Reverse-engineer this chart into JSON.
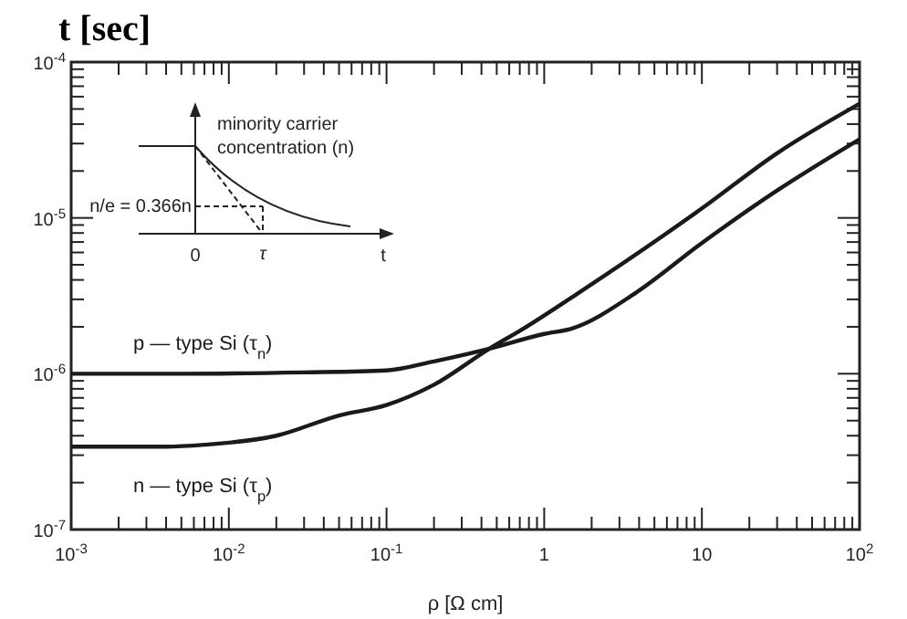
{
  "chart_data": {
    "type": "line",
    "title": "t [sec]",
    "xlabel": "ρ [Ω cm]",
    "log": "xy",
    "xlim": [
      0.001,
      100
    ],
    "ylim": [
      1e-07,
      0.0001
    ],
    "xticks": [
      {
        "value": 0.001,
        "label": "10$^{-3}$"
      },
      {
        "value": 0.002,
        "label": null
      },
      {
        "value": 0.003,
        "label": null
      },
      {
        "value": 0.004,
        "label": null
      },
      {
        "value": 0.005,
        "label": null
      },
      {
        "value": 0.006,
        "label": null
      },
      {
        "value": 0.007,
        "label": null
      },
      {
        "value": 0.008,
        "label": null
      },
      {
        "value": 0.009,
        "label": null
      },
      {
        "value": 0.01,
        "label": "10$^{-2}$"
      },
      {
        "value": 0.02,
        "label": null
      },
      {
        "value": 0.03,
        "label": null
      },
      {
        "value": 0.04,
        "label": null
      },
      {
        "value": 0.05,
        "label": null
      },
      {
        "value": 0.06,
        "label": null
      },
      {
        "value": 0.07,
        "label": null
      },
      {
        "value": 0.08,
        "label": null
      },
      {
        "value": 0.09,
        "label": null
      },
      {
        "value": 0.1,
        "label": "10$^{-1}$"
      },
      {
        "value": 0.2,
        "label": null
      },
      {
        "value": 0.3,
        "label": null
      },
      {
        "value": 0.4,
        "label": null
      },
      {
        "value": 0.5,
        "label": null
      },
      {
        "value": 0.6,
        "label": null
      },
      {
        "value": 0.7,
        "label": null
      },
      {
        "value": 0.8,
        "label": null
      },
      {
        "value": 0.9,
        "label": null
      },
      1,
      {
        "value": 2,
        "label": null
      },
      {
        "value": 3,
        "label": null
      },
      {
        "value": 4,
        "label": null
      },
      {
        "value": 5,
        "label": null
      },
      {
        "value": 6,
        "label": null
      },
      {
        "value": 7,
        "label": null
      },
      {
        "value": 8,
        "label": null
      },
      {
        "value": 9,
        "label": null
      },
      10,
      {
        "value": 20,
        "label": null
      },
      {
        "value": 30,
        "label": null
      },
      {
        "value": 40,
        "label": null
      },
      {
        "value": 50,
        "label": null
      },
      {
        "value": 60,
        "label": null
      },
      {
        "value": 70,
        "label": null
      },
      {
        "value": 80,
        "label": null
      },
      {
        "value": 90,
        "label": null
      },
      {
        "value": 100,
        "label": "10$^{2}$"
      }
    ],
    "yticks": [
      {
        "value": 1e-07,
        "label": "10$^{-7}$"
      },
      {
        "value": 2e-07,
        "label": null
      },
      {
        "value": 3e-07,
        "label": null
      },
      {
        "value": 4e-07,
        "label": null
      },
      {
        "value": 5e-07,
        "label": null
      },
      {
        "value": 6e-07,
        "label": null
      },
      {
        "value": 7e-07,
        "label": null
      },
      {
        "value": 8e-07,
        "label": null
      },
      {
        "value": 9e-07,
        "label": null
      },
      {
        "value": 1e-06,
        "label": "10$^{-6}$"
      },
      {
        "value": 2e-06,
        "label": null
      },
      {
        "value": 3e-06,
        "label": null
      },
      {
        "value": 4e-06,
        "label": null
      },
      {
        "value": 5e-06,
        "label": null
      },
      {
        "value": 6e-06,
        "label": null
      },
      {
        "value": 7e-06,
        "label": null
      },
      {
        "value": 8e-06,
        "label": null
      },
      {
        "value": 9e-06,
        "label": null
      },
      {
        "value": 1e-05,
        "label": "10$^{-5}$"
      },
      {
        "value": 2e-05,
        "label": null
      },
      {
        "value": 3e-05,
        "label": null
      },
      {
        "value": 4e-05,
        "label": null
      },
      {
        "value": 5e-05,
        "label": null
      },
      {
        "value": 6e-05,
        "label": null
      },
      {
        "value": 7e-05,
        "label": null
      },
      {
        "value": 8e-05,
        "label": null
      },
      {
        "value": 9e-05,
        "label": null
      },
      {
        "value": 0.0001,
        "label": "10$^{-4}$"
      }
    ],
    "grid": false,
    "legend": false,
    "marker": "none",
    "line_style": "solid",
    "series": [
      {
        "name": "p — type Si (τ$_{n}$)",
        "color": "#1a1a1a",
        "x": [
          0.001,
          0.005,
          0.03,
          0.1,
          0.2,
          0.45,
          1,
          1.5,
          3.8,
          10,
          30,
          100
        ],
        "values": [
          1e-06,
          1e-06,
          1.02e-06,
          1.05e-06,
          1.2e-06,
          1.45e-06,
          1.8e-06,
          1.95e-06,
          3.3e-06,
          6.9e-06,
          1.5e-05,
          3.2e-05
        ]
      },
      {
        "name": "n — type Si (τ$_{p}$)",
        "color": "#1a1a1a",
        "x": [
          0.001,
          0.004,
          0.007,
          0.02,
          0.05,
          0.1,
          0.2,
          0.45,
          0.74,
          1.65,
          10,
          30,
          100
        ],
        "values": [
          3.4e-07,
          3.4e-07,
          3.5e-07,
          4e-07,
          5.4e-07,
          6.3e-07,
          8.5e-07,
          1.45e-06,
          1.95e-06,
          3.3e-06,
          1.15e-05,
          2.6e-05,
          5.4e-05
        ]
      }
    ],
    "annotations": [
      "minority carrier concentration (n)",
      "n/e = 0.366n",
      "0",
      "τ",
      "t"
    ]
  }
}
